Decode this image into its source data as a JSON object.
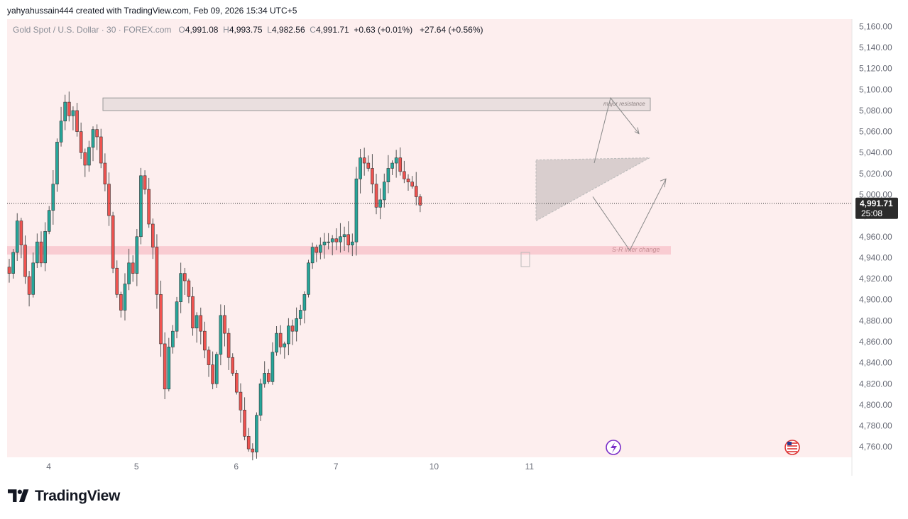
{
  "header": {
    "text": "yahyahussain444 created with TradingView.com, Feb 09, 2026 15:34 UTC+5"
  },
  "legend": {
    "symbol": "Gold Spot / U.S. Dollar · 30 · FOREX.com",
    "o_label": "O",
    "o": "4,991.08",
    "h_label": "H",
    "h": "4,993.75",
    "l_label": "L",
    "l": "4,982.56",
    "c_label": "C",
    "c": "4,991.71",
    "change": "+0.63 (+0.01%)",
    "change2": "+27.64 (+0.56%)"
  },
  "price_badge": {
    "price": "4,991.71",
    "countdown": "25:08"
  },
  "annotations": {
    "resistance": "major resistance",
    "sr": "S-R inter change"
  },
  "footer": {
    "brand": "TradingView"
  },
  "colors": {
    "background": "#fdeeee",
    "bull": "#26a69a",
    "bear": "#ef5350",
    "wick": "#555555",
    "zone_sr": "#f8c6cc",
    "zone_res": "#e3dada",
    "triangle": "#cfc6c6"
  },
  "chart_data": {
    "type": "candlestick",
    "title": "Gold Spot / U.S. Dollar · 30 · FOREX.com",
    "x_ticks": [
      "4",
      "5",
      "6",
      "7",
      "10",
      "11"
    ],
    "y_ticks": [
      "5,160.00",
      "5,140.00",
      "5,120.00",
      "5,100.00",
      "5,080.00",
      "5,060.00",
      "5,040.00",
      "5,020.00",
      "5,000.00",
      "4,980.00",
      "4,960.00",
      "4,940.00",
      "4,920.00",
      "4,900.00",
      "4,880.00",
      "4,860.00",
      "4,840.00",
      "4,820.00",
      "4,800.00",
      "4,780.00",
      "4,760.00"
    ],
    "ylim": [
      4750,
      5167
    ],
    "current_price": 4991.71,
    "zones": [
      {
        "label": "major resistance",
        "from": 5080,
        "to": 5092
      },
      {
        "label": "S-R inter change",
        "from": 4943,
        "to": 4951
      }
    ],
    "close_path": [
      4925,
      4945,
      4975,
      4952,
      4922,
      4905,
      4935,
      4955,
      4935,
      4965,
      4985,
      5010,
      5050,
      5070,
      5088,
      5075,
      5080,
      5060,
      5040,
      5028,
      5045,
      5062,
      5055,
      5030,
      5010,
      4980,
      4930,
      4905,
      4890,
      4915,
      4935,
      4925,
      4960,
      5018,
      5005,
      4972,
      4950,
      4905,
      4858,
      4815,
      4855,
      4870,
      4898,
      4925,
      4918,
      4903,
      4873,
      4885,
      4870,
      4852,
      4838,
      4820,
      4848,
      4885,
      4868,
      4845,
      4830,
      4812,
      4795,
      4770,
      4758,
      4755,
      4790,
      4820,
      4830,
      4822,
      4850,
      4868,
      4855,
      4858,
      4875,
      4870,
      4882,
      4890,
      4905,
      4935,
      4950,
      4945,
      4952,
      4955,
      4955,
      4958,
      4955,
      4960,
      4962,
      4952,
      4955,
      5015,
      5035,
      5030,
      5025,
      5010,
      4988,
      4995,
      5012,
      5025,
      5030,
      5035,
      5022,
      5015,
      5012,
      5008,
      4998,
      4990
    ],
    "x_index_ticks": [
      10,
      32,
      57,
      82,
      106,
      130
    ]
  }
}
